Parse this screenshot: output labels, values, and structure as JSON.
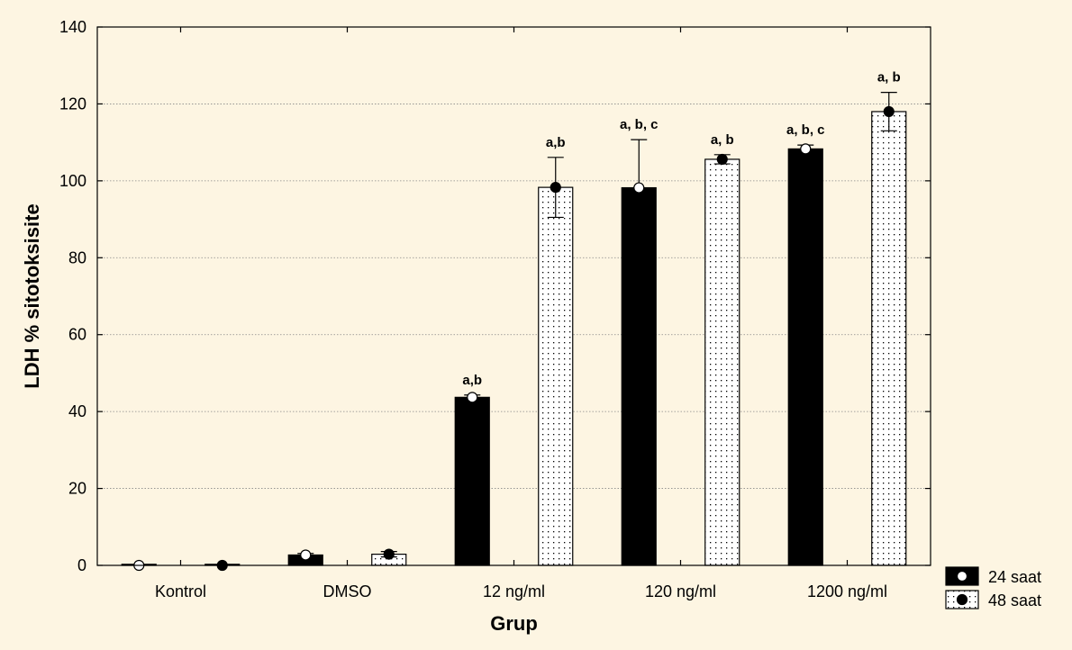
{
  "chart_data": {
    "type": "bar",
    "title": "",
    "xlabel": "Grup",
    "ylabel": "LDH % sitotoksisite",
    "ylim": [
      0,
      140
    ],
    "yticks": [
      0,
      20,
      40,
      60,
      80,
      100,
      120,
      140
    ],
    "grid": true,
    "legend_position": "bottom-right",
    "categories": [
      "Kontrol",
      "DMSO",
      "12 ng/ml",
      "120 ng/ml",
      "1200 ng/ml"
    ],
    "series": [
      {
        "name": "24 saat",
        "fill": "#000000",
        "marker": "open-circle",
        "values": [
          0,
          2.7,
          43.7,
          98.2,
          108.3
        ],
        "error": [
          0,
          0.4,
          0.6,
          12.5,
          1.0
        ],
        "annotations": [
          "",
          "",
          "a,b",
          "a, b, c",
          "a, b, c"
        ]
      },
      {
        "name": "48 saat",
        "fill": "dotted",
        "marker": "filled-circle",
        "values": [
          0,
          2.9,
          98.3,
          105.6,
          118.0
        ],
        "error": [
          0,
          0.7,
          7.8,
          1.2,
          5.0
        ],
        "annotations": [
          "",
          "",
          "a,b",
          "a, b",
          "a, b"
        ]
      }
    ]
  }
}
